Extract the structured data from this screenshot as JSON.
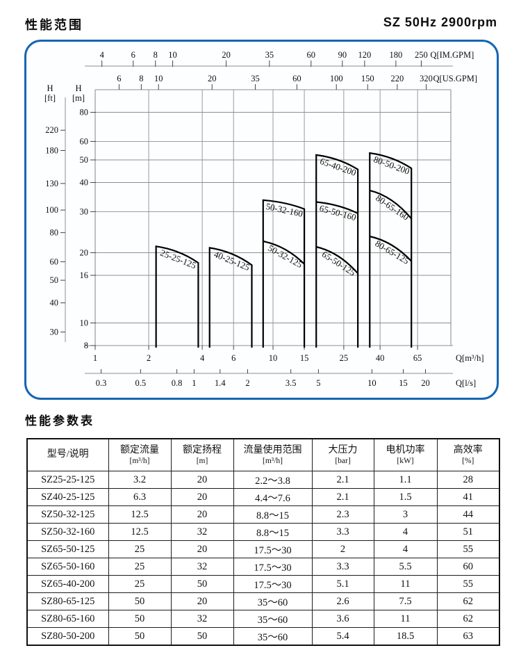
{
  "header": {
    "title_left": "性能范围",
    "title_right": "SZ 50Hz 2900rpm"
  },
  "chart_data": {
    "type": "area",
    "title": "性能范围 SZ 50Hz 2900rpm",
    "x_scale": "log",
    "y_scale": "log",
    "x_range_m3h": [
      1,
      100
    ],
    "y_range_m": [
      8,
      100
    ],
    "grid": {
      "v_lines_m3h": [
        2,
        4,
        6,
        10,
        15,
        25,
        40,
        65
      ],
      "h_lines_m": [
        80,
        60,
        50,
        40,
        30,
        20,
        16,
        10
      ]
    },
    "axes": {
      "top_imgpm": {
        "title": "Q[IM.GPM]",
        "factor_per_m3h": 3.6662,
        "ticks": [
          4,
          6,
          8,
          10,
          20,
          35,
          60,
          90,
          120,
          180,
          250
        ]
      },
      "top_usgpm": {
        "title": "Q[US.GPM]",
        "factor_per_m3h": 4.4029,
        "ticks": [
          6,
          8,
          10,
          20,
          35,
          60,
          100,
          150,
          220,
          320
        ]
      },
      "left_ft": {
        "title_line1": "H",
        "title_line2": "[ft]",
        "factor_per_m": 3.2808,
        "ticks": [
          220,
          180,
          130,
          100,
          80,
          60,
          50,
          40,
          30
        ]
      },
      "left_m": {
        "title_line1": "H",
        "title_line2": "[m]",
        "ticks": [
          80,
          60,
          50,
          40,
          30,
          20,
          16,
          10,
          8
        ]
      },
      "bottom_m3h": {
        "title": "Q[m³/h]",
        "ticks": [
          1,
          2,
          4,
          6,
          10,
          15,
          25,
          40,
          65
        ]
      },
      "bottom_ls": {
        "title": "Q[l/s]",
        "factor_per_m3h": 0.27778,
        "ticks": [
          0.3,
          0.5,
          0.8,
          1,
          1.4,
          2,
          3.5,
          5,
          10,
          15,
          20
        ]
      }
    },
    "regions": [
      {
        "q_min": 2.2,
        "q_max": 3.8,
        "curves": [
          {
            "label": "25-25-125",
            "h_left": 21.3,
            "h_right": 18.1
          }
        ]
      },
      {
        "q_min": 4.4,
        "q_max": 7.6,
        "curves": [
          {
            "label": "40-25-125",
            "h_left": 21.0,
            "h_right": 17.7
          }
        ]
      },
      {
        "q_min": 8.8,
        "q_max": 15,
        "curves": [
          {
            "label": "50-32-160",
            "h_left": 33.6,
            "h_right": 30.8
          },
          {
            "label": "50-32-125",
            "h_left": 22.4,
            "h_right": 17.9
          }
        ]
      },
      {
        "q_min": 17.5,
        "q_max": 30,
        "curves": [
          {
            "label": "65-40-200",
            "h_left": 52.5,
            "h_right": 45.5
          },
          {
            "label": "65-50-160",
            "h_left": 33.0,
            "h_right": 29.5
          },
          {
            "label": "65-50-125",
            "h_left": 21.2,
            "h_right": 16.3
          }
        ]
      },
      {
        "q_min": 35,
        "q_max": 60,
        "curves": [
          {
            "label": "80-50-200",
            "h_left": 53.5,
            "h_right": 46.0
          },
          {
            "label": "80-65-160",
            "h_left": 37.0,
            "h_right": 28.0
          },
          {
            "label": "80-65-125",
            "h_left": 23.5,
            "h_right": 18.4
          }
        ]
      }
    ]
  },
  "table": {
    "title": "性能参数表",
    "columns": [
      {
        "label": "型号/说明",
        "unit": ""
      },
      {
        "label": "额定流量",
        "unit": "[m³/h]"
      },
      {
        "label": "额定扬程",
        "unit": "[m]"
      },
      {
        "label": "流量使用范围",
        "unit": "[m³/h]"
      },
      {
        "label": "大压力",
        "unit": "[bar]"
      },
      {
        "label": "电机功率",
        "unit": "[kW]"
      },
      {
        "label": "高效率",
        "unit": "[%]"
      }
    ],
    "rows": [
      [
        "SZ25-25-125",
        "3.2",
        "20",
        "2.2～3.8",
        "2.1",
        "1.1",
        "28"
      ],
      [
        "SZ40-25-125",
        "6.3",
        "20",
        "4.4～7.6",
        "2.1",
        "1.5",
        "41"
      ],
      [
        "SZ50-32-125",
        "12.5",
        "20",
        "8.8～15",
        "2.3",
        "3",
        "44"
      ],
      [
        "SZ50-32-160",
        "12.5",
        "32",
        "8.8～15",
        "3.3",
        "4",
        "51"
      ],
      [
        "SZ65-50-125",
        "25",
        "20",
        "17.5～30",
        "2",
        "4",
        "55"
      ],
      [
        "SZ65-50-160",
        "25",
        "32",
        "17.5～30",
        "3.3",
        "5.5",
        "60"
      ],
      [
        "SZ65-40-200",
        "25",
        "50",
        "17.5～30",
        "5.1",
        "11",
        "55"
      ],
      [
        "SZ80-65-125",
        "50",
        "20",
        "35～60",
        "2.6",
        "7.5",
        "62"
      ],
      [
        "SZ80-65-160",
        "50",
        "32",
        "35～60",
        "3.6",
        "11",
        "62"
      ],
      [
        "SZ80-50-200",
        "50",
        "50",
        "35～60",
        "5.4",
        "18.5",
        "63"
      ]
    ]
  },
  "colors": {
    "accent_border": "#1565b3",
    "grid": "#8f8f8f",
    "curve": "#000000"
  }
}
